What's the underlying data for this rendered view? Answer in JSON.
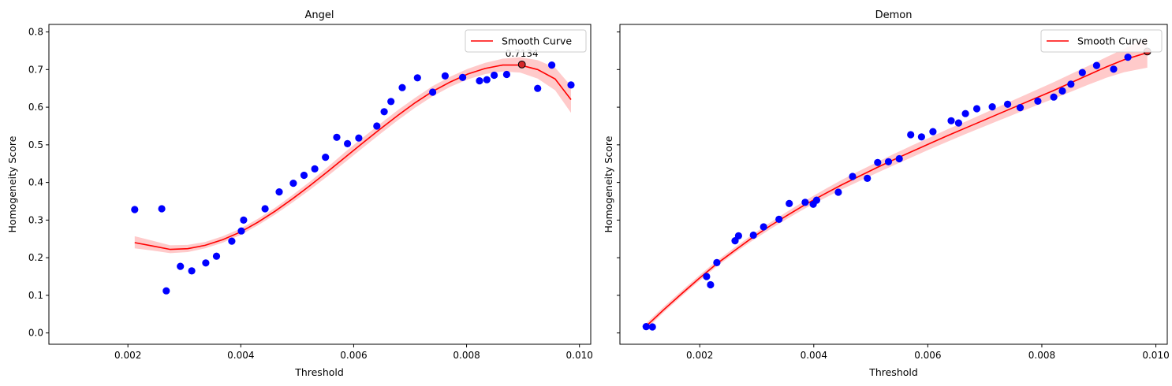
{
  "chart_data": [
    {
      "type": "scatter",
      "title": "Angel",
      "xlabel": "Threshold",
      "ylabel": "Homogeneity Score",
      "xlim": [
        0.0006,
        0.0102
      ],
      "ylim": [
        -0.03,
        0.82
      ],
      "xticks": [
        0.002,
        0.004,
        0.006,
        0.008,
        0.01
      ],
      "xtick_labels": [
        "0.002",
        "0.004",
        "0.006",
        "0.008",
        "0.010"
      ],
      "yticks": [
        0.0,
        0.1,
        0.2,
        0.3,
        0.4,
        0.5,
        0.6,
        0.7,
        0.8
      ],
      "ytick_labels": [
        "0.0",
        "0.1",
        "0.2",
        "0.3",
        "0.4",
        "0.5",
        "0.6",
        "0.7",
        "0.8"
      ],
      "legend": {
        "placement": "top-right",
        "entries": [
          "Smooth Curve"
        ]
      },
      "colors": {
        "points": "#0000ff",
        "curve": "#ff0000",
        "band": "#ff8080",
        "max_point": "#d62728"
      },
      "points": {
        "x": [
          0.00212,
          0.0026,
          0.00268,
          0.00293,
          0.00313,
          0.00338,
          0.00357,
          0.00384,
          0.00401,
          0.00405,
          0.00443,
          0.00468,
          0.00493,
          0.00512,
          0.00531,
          0.0055,
          0.0057,
          0.00589,
          0.00609,
          0.00641,
          0.00654,
          0.00666,
          0.00686,
          0.00713,
          0.0074,
          0.00762,
          0.00793,
          0.00823,
          0.00836,
          0.00849,
          0.00871,
          0.00898,
          0.00926,
          0.00951,
          0.00985
        ],
        "y": [
          0.328,
          0.33,
          0.112,
          0.177,
          0.165,
          0.186,
          0.204,
          0.244,
          0.271,
          0.3,
          0.33,
          0.375,
          0.398,
          0.419,
          0.436,
          0.467,
          0.52,
          0.503,
          0.518,
          0.55,
          0.588,
          0.615,
          0.652,
          0.678,
          0.64,
          0.683,
          0.679,
          0.67,
          0.673,
          0.685,
          0.687,
          0.7134,
          0.65,
          0.712,
          0.659
        ]
      },
      "curve": {
        "x": [
          0.00212,
          0.00244,
          0.00275,
          0.00306,
          0.00337,
          0.00368,
          0.00399,
          0.0043,
          0.00461,
          0.00492,
          0.00523,
          0.00554,
          0.00585,
          0.00616,
          0.00647,
          0.00678,
          0.00709,
          0.0074,
          0.00771,
          0.00802,
          0.00833,
          0.00864,
          0.00895,
          0.00926,
          0.00957,
          0.00985
        ],
        "y": [
          0.24,
          0.231,
          0.222,
          0.224,
          0.233,
          0.248,
          0.268,
          0.294,
          0.324,
          0.357,
          0.392,
          0.429,
          0.467,
          0.505,
          0.542,
          0.578,
          0.612,
          0.642,
          0.667,
          0.688,
          0.703,
          0.712,
          0.712,
          0.7,
          0.675,
          0.62
        ],
        "lower": [
          0.225,
          0.219,
          0.212,
          0.215,
          0.225,
          0.24,
          0.26,
          0.286,
          0.315,
          0.347,
          0.381,
          0.417,
          0.454,
          0.492,
          0.529,
          0.565,
          0.599,
          0.629,
          0.654,
          0.674,
          0.688,
          0.695,
          0.692,
          0.676,
          0.645,
          0.585
        ],
        "upper": [
          0.257,
          0.245,
          0.233,
          0.234,
          0.242,
          0.257,
          0.277,
          0.303,
          0.333,
          0.367,
          0.403,
          0.441,
          0.481,
          0.519,
          0.556,
          0.592,
          0.625,
          0.656,
          0.681,
          0.702,
          0.718,
          0.729,
          0.733,
          0.725,
          0.705,
          0.656
        ]
      },
      "max_point": {
        "x": 0.00898,
        "y": 0.7134,
        "label": "0.7134"
      }
    },
    {
      "type": "scatter",
      "title": "Demon",
      "xlabel": "Threshold",
      "ylabel": "Homogeneity Score",
      "xlim": [
        0.0006,
        0.0102
      ],
      "ylim": [
        -0.03,
        0.82
      ],
      "xticks": [
        0.002,
        0.004,
        0.006,
        0.008,
        0.01
      ],
      "xtick_labels": [
        "0.002",
        "0.004",
        "0.006",
        "0.008",
        "0.010"
      ],
      "yticks": [
        0.0,
        0.1,
        0.2,
        0.3,
        0.4,
        0.5,
        0.6,
        0.7,
        0.8
      ],
      "ytick_labels": [
        "",
        "",
        "",
        "",
        "",
        "",
        "",
        "",
        ""
      ],
      "legend": {
        "placement": "top-right",
        "entries": [
          "Smooth Curve"
        ]
      },
      "colors": {
        "points": "#0000ff",
        "curve": "#ff0000",
        "band": "#ff8080",
        "max_point": "#d62728"
      },
      "points": {
        "x": [
          0.00106,
          0.00117,
          0.00212,
          0.00219,
          0.0023,
          0.00262,
          0.00268,
          0.00294,
          0.00312,
          0.00339,
          0.00357,
          0.00385,
          0.00399,
          0.00405,
          0.00443,
          0.00468,
          0.00494,
          0.00512,
          0.00531,
          0.0055,
          0.0057,
          0.00589,
          0.00609,
          0.00641,
          0.00654,
          0.00666,
          0.00686,
          0.00713,
          0.0074,
          0.00762,
          0.00793,
          0.00821,
          0.00836,
          0.00851,
          0.00871,
          0.00896,
          0.00926,
          0.00951,
          0.00985
        ],
        "y": [
          0.017,
          0.016,
          0.15,
          0.128,
          0.187,
          0.245,
          0.258,
          0.26,
          0.282,
          0.302,
          0.344,
          0.347,
          0.342,
          0.353,
          0.374,
          0.416,
          0.411,
          0.453,
          0.455,
          0.463,
          0.527,
          0.521,
          0.535,
          0.564,
          0.558,
          0.583,
          0.596,
          0.601,
          0.608,
          0.599,
          0.616,
          0.627,
          0.643,
          0.661,
          0.692,
          0.711,
          0.701,
          0.733,
          0.748
        ]
      },
      "curve": {
        "x": [
          0.00106,
          0.00137,
          0.00168,
          0.00199,
          0.0023,
          0.00262,
          0.00293,
          0.00324,
          0.00355,
          0.00386,
          0.00417,
          0.00448,
          0.00479,
          0.0051,
          0.00541,
          0.00572,
          0.00603,
          0.00634,
          0.00665,
          0.00696,
          0.00727,
          0.00758,
          0.00789,
          0.0082,
          0.00851,
          0.00882,
          0.00913,
          0.00944,
          0.00985
        ],
        "y": [
          0.018,
          0.062,
          0.104,
          0.145,
          0.184,
          0.22,
          0.254,
          0.285,
          0.314,
          0.342,
          0.368,
          0.393,
          0.416,
          0.439,
          0.461,
          0.482,
          0.503,
          0.524,
          0.544,
          0.564,
          0.584,
          0.604,
          0.624,
          0.644,
          0.665,
          0.686,
          0.707,
          0.726,
          0.745
        ],
        "lower": [
          0.01,
          0.055,
          0.097,
          0.138,
          0.177,
          0.213,
          0.246,
          0.276,
          0.305,
          0.332,
          0.357,
          0.381,
          0.403,
          0.425,
          0.446,
          0.467,
          0.488,
          0.508,
          0.528,
          0.547,
          0.566,
          0.585,
          0.604,
          0.622,
          0.641,
          0.66,
          0.678,
          0.693,
          0.705
        ],
        "upper": [
          0.026,
          0.07,
          0.112,
          0.153,
          0.192,
          0.228,
          0.262,
          0.294,
          0.324,
          0.353,
          0.38,
          0.406,
          0.43,
          0.453,
          0.476,
          0.498,
          0.519,
          0.541,
          0.561,
          0.582,
          0.603,
          0.624,
          0.645,
          0.666,
          0.688,
          0.71,
          0.733,
          0.755,
          0.785
        ]
      },
      "max_point": {
        "x": 0.00985,
        "y": 0.748,
        "label": ""
      }
    }
  ]
}
